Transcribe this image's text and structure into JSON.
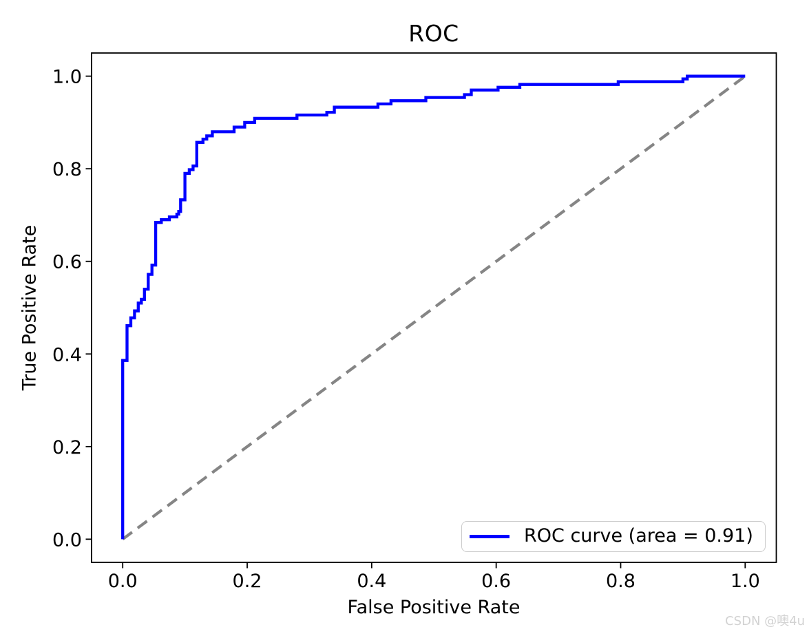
{
  "figure": {
    "title": "ROC",
    "watermark": "CSDN @噢4u"
  },
  "chart_data": {
    "type": "line",
    "subtype": "roc_step_curve",
    "title": "ROC",
    "xlabel": "False Positive Rate",
    "ylabel": "True Positive Rate",
    "xlim": [
      -0.05,
      1.05
    ],
    "ylim": [
      -0.05,
      1.05
    ],
    "x_ticks": [
      0.0,
      0.2,
      0.4,
      0.6,
      0.8,
      1.0
    ],
    "x_tick_labels": [
      "0.0",
      "0.2",
      "0.4",
      "0.6",
      "0.8",
      "1.0"
    ],
    "y_ticks": [
      0.0,
      0.2,
      0.4,
      0.6,
      0.8,
      1.0
    ],
    "y_tick_labels": [
      "0.0",
      "0.2",
      "0.4",
      "0.6",
      "0.8",
      "1.0"
    ],
    "grid": false,
    "auc": 0.91,
    "legend": {
      "position": "lower right",
      "entries": [
        {
          "label": "ROC curve (area = 0.91)",
          "color": "#0000ff",
          "linestyle": "solid"
        }
      ]
    },
    "axes_style": {
      "spine_color": "#000000",
      "tick_color": "#000000",
      "tick_label_color": "#000000",
      "background": "#ffffff"
    },
    "series": [
      {
        "name": "ROC curve",
        "color": "#0000ff",
        "linestyle": "solid",
        "drawstyle": "steps-post",
        "linewidth": 4.3,
        "points": [
          [
            0.0,
            0.0
          ],
          [
            0.0,
            0.386
          ],
          [
            0.007,
            0.461
          ],
          [
            0.013,
            0.478
          ],
          [
            0.019,
            0.493
          ],
          [
            0.025,
            0.51
          ],
          [
            0.03,
            0.518
          ],
          [
            0.035,
            0.54
          ],
          [
            0.041,
            0.572
          ],
          [
            0.047,
            0.592
          ],
          [
            0.053,
            0.684
          ],
          [
            0.062,
            0.69
          ],
          [
            0.075,
            0.696
          ],
          [
            0.087,
            0.702
          ],
          [
            0.09,
            0.708
          ],
          [
            0.093,
            0.733
          ],
          [
            0.1,
            0.79
          ],
          [
            0.107,
            0.798
          ],
          [
            0.113,
            0.806
          ],
          [
            0.119,
            0.857
          ],
          [
            0.129,
            0.864
          ],
          [
            0.135,
            0.871
          ],
          [
            0.144,
            0.88
          ],
          [
            0.179,
            0.89
          ],
          [
            0.196,
            0.9
          ],
          [
            0.212,
            0.909
          ],
          [
            0.28,
            0.916
          ],
          [
            0.328,
            0.922
          ],
          [
            0.34,
            0.933
          ],
          [
            0.41,
            0.94
          ],
          [
            0.431,
            0.947
          ],
          [
            0.487,
            0.954
          ],
          [
            0.549,
            0.96
          ],
          [
            0.56,
            0.97
          ],
          [
            0.603,
            0.976
          ],
          [
            0.638,
            0.982
          ],
          [
            0.796,
            0.988
          ],
          [
            0.9,
            0.994
          ],
          [
            0.907,
            1.0
          ],
          [
            1.0,
            1.0
          ]
        ]
      },
      {
        "name": "chance diagonal",
        "color": "#858585",
        "linestyle": "dashed",
        "dash_pattern": [
          17,
          10
        ],
        "linewidth": 4.2,
        "points": [
          [
            0.0,
            0.0
          ],
          [
            1.0,
            1.0
          ]
        ]
      }
    ]
  }
}
